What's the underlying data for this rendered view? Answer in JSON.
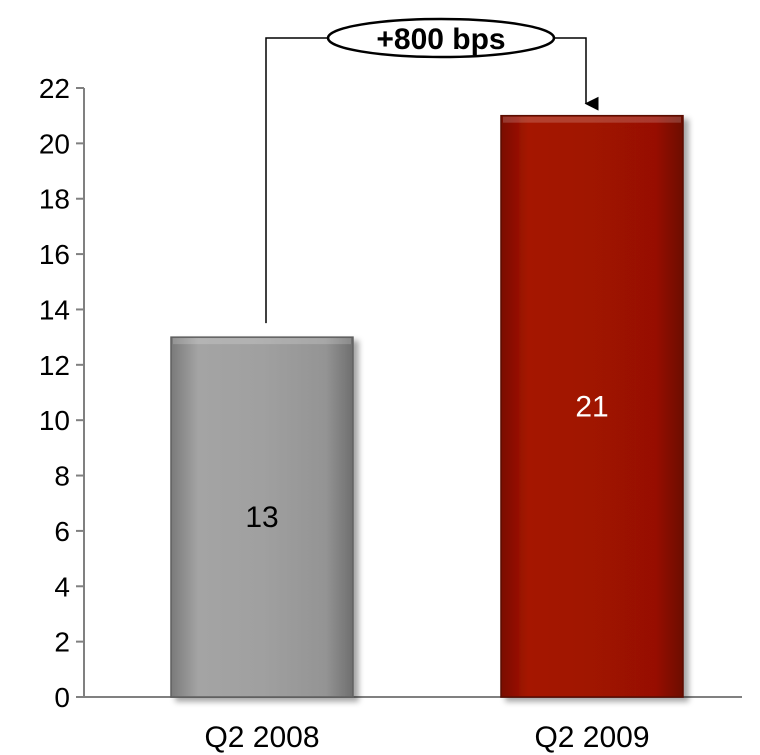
{
  "chart_data": {
    "type": "bar",
    "categories": [
      "Q2 2008",
      "Q2 2009"
    ],
    "values": [
      13,
      21
    ],
    "data_labels": [
      "13",
      "21"
    ],
    "ylim": [
      0,
      22
    ],
    "yticks": [
      0,
      2,
      4,
      6,
      8,
      10,
      12,
      14,
      16,
      18,
      20,
      22
    ],
    "grid": false,
    "legend": "none",
    "bar_colors": [
      "#9a9a9a",
      "#a01200"
    ],
    "data_label_colors": [
      "#000000",
      "#ffffff"
    ],
    "annotation": {
      "text": "+800 bps",
      "from_category": "Q2 2008",
      "to_category": "Q2 2009"
    }
  }
}
